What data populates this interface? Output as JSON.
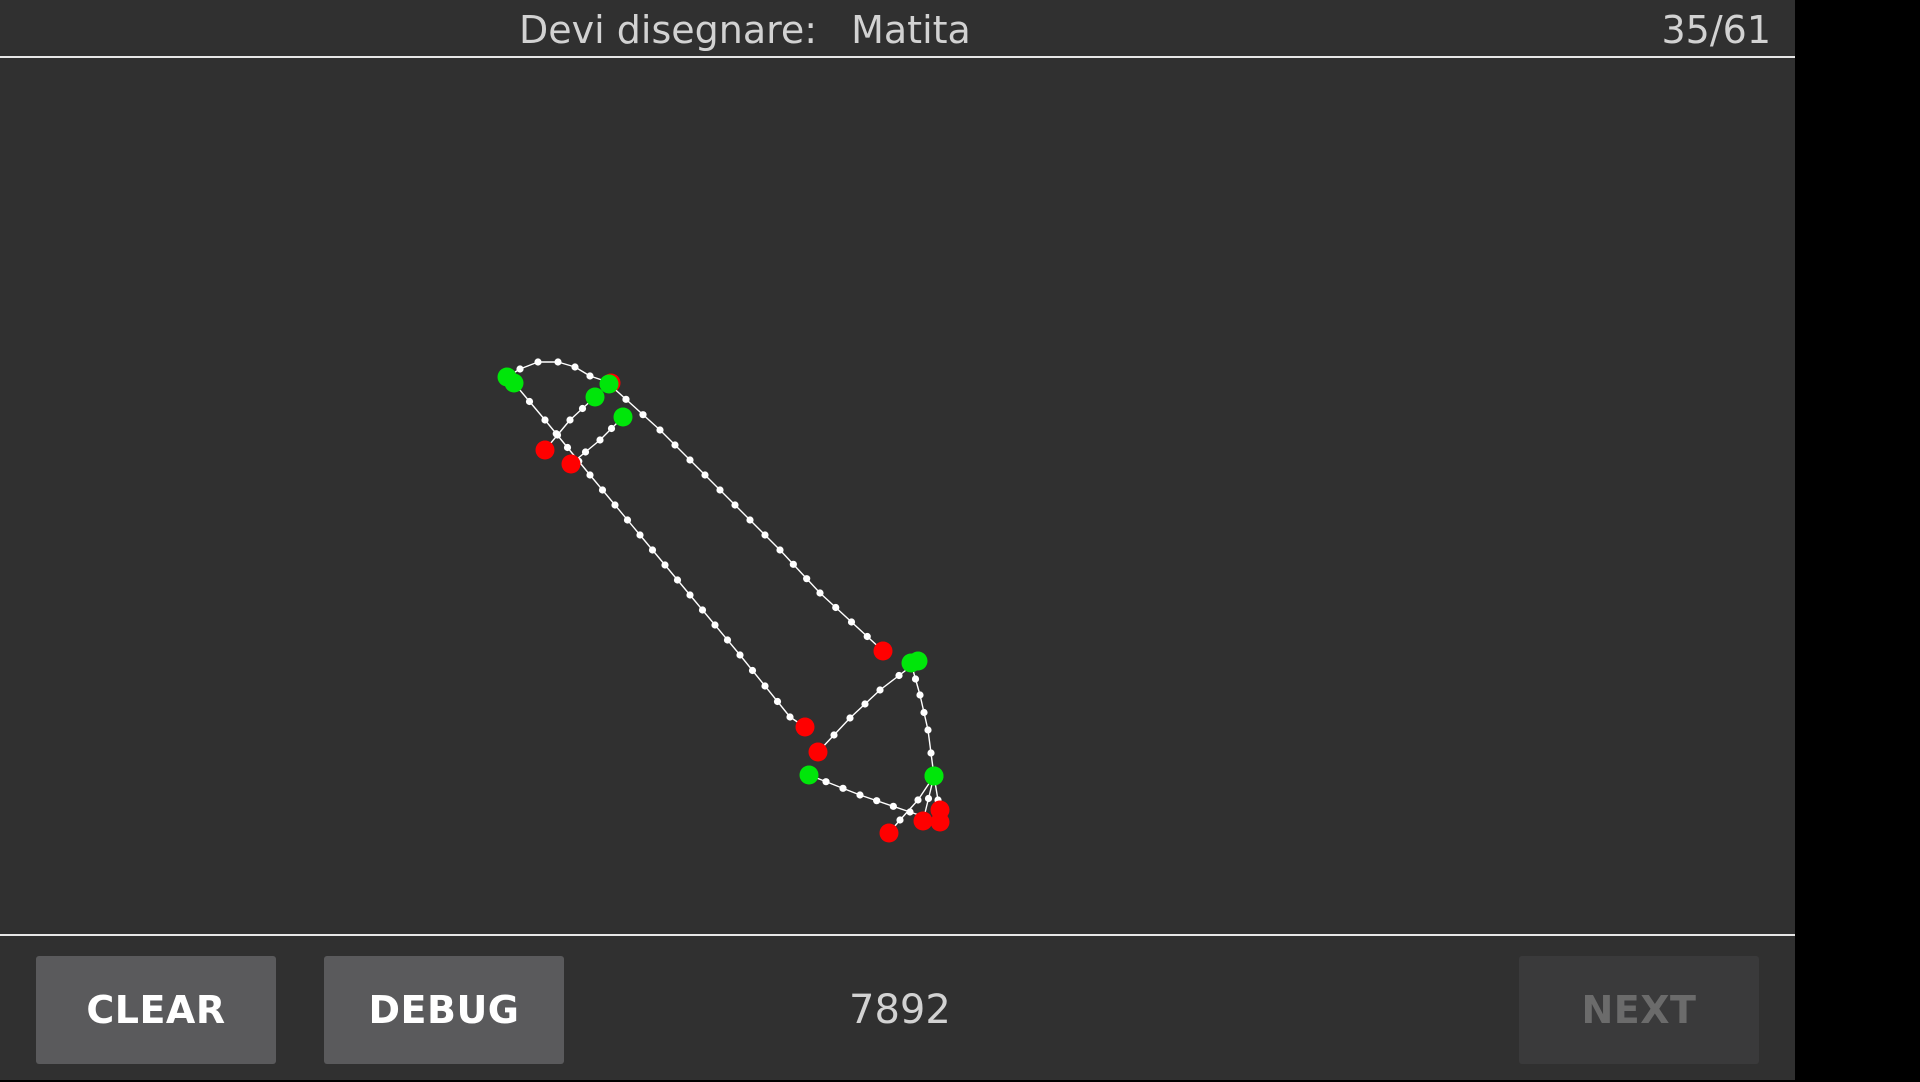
{
  "header": {
    "prompt_label": "Devi disegnare:",
    "prompt_word": "Matita",
    "progress": "35/61"
  },
  "footer": {
    "clear_label": "CLEAR",
    "debug_label": "DEBUG",
    "score": "7892",
    "next_label": "NEXT",
    "next_enabled": false
  },
  "colors": {
    "background": "#303030",
    "stroke": "#ffffff",
    "stroke_start": "#00e60a",
    "stroke_end": "#ff0000"
  }
}
